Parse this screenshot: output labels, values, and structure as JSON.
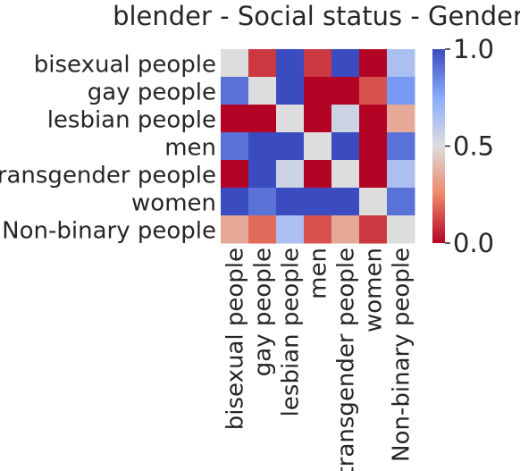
{
  "chart_data": {
    "type": "heatmap",
    "title": "blender - Social status - Gender",
    "rows": [
      "bisexual people",
      "gay people",
      "lesbian people",
      "men",
      "transgender people",
      "women",
      "Non-binary people"
    ],
    "columns": [
      "bisexual people",
      "gay people",
      "lesbian people",
      "men",
      "transgender people",
      "women",
      "Non-binary people"
    ],
    "values": [
      [
        0.5,
        0.1,
        1.0,
        0.1,
        1.0,
        0.0,
        0.65
      ],
      [
        0.9,
        0.5,
        1.0,
        0.0,
        0.0,
        0.15,
        0.8
      ],
      [
        0.0,
        0.0,
        0.5,
        0.0,
        0.55,
        0.0,
        0.35
      ],
      [
        0.9,
        1.0,
        1.0,
        0.5,
        1.0,
        0.0,
        0.9
      ],
      [
        0.0,
        1.0,
        0.55,
        0.0,
        0.5,
        0.0,
        0.65
      ],
      [
        1.0,
        0.9,
        1.0,
        1.0,
        1.0,
        0.5,
        0.9
      ],
      [
        0.35,
        0.2,
        0.65,
        0.15,
        0.35,
        0.1,
        0.5
      ]
    ],
    "colormap": "coolwarm_r",
    "vmin": 0.0,
    "vmax": 1.0,
    "colorbar_ticks": [
      "0.0",
      "0.5",
      "1.0"
    ],
    "colorbar_tick_values": [
      0.0,
      0.5,
      1.0
    ]
  }
}
